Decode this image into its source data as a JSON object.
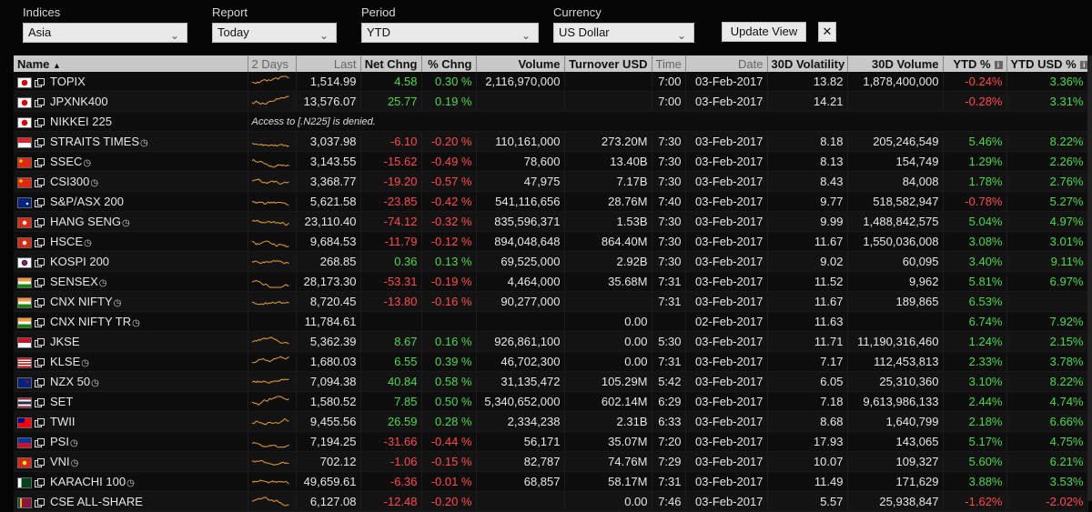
{
  "controls": {
    "indices": {
      "label": "Indices",
      "value": "Asia"
    },
    "report": {
      "label": "Report",
      "value": "Today"
    },
    "period": {
      "label": "Period",
      "value": "YTD"
    },
    "currency": {
      "label": "Currency",
      "value": "US Dollar"
    },
    "update_label": "Update View",
    "close_symbol": "✕"
  },
  "columns": {
    "name": "Name",
    "sort_arrow": "▲",
    "days": "2 Days",
    "last": "Last",
    "net_chng": "Net Chng",
    "pct_chng": "% Chng",
    "volume": "Volume",
    "turnover": "Turnover USD",
    "time": "Time",
    "date": "Date",
    "vol30": "30D Volatility",
    "volume30": "30D Volume",
    "ytd": "YTD %",
    "ytd_usd": "YTD USD %",
    "info_icon": "i"
  },
  "colors": {
    "positive": "#4cd84c",
    "negative": "#ff4b4b",
    "sparkline": "#e8a030",
    "header_bg": "#c8c8c8"
  },
  "rows": [
    {
      "name": "TOPIX",
      "flag": "jp",
      "clock": false,
      "spark": true,
      "last": "1,514.99",
      "net": "4.58",
      "pct": "0.30 %",
      "volume": "2,116,970,000",
      "turnover": "",
      "time": "7:00",
      "date": "03-Feb-2017",
      "vol30": "13.82",
      "volume30": "1,878,400,000",
      "ytd": "-0.24%",
      "ytd_usd": "3.36%"
    },
    {
      "name": "JPXNK400",
      "flag": "jp",
      "clock": false,
      "spark": true,
      "last": "13,576.07",
      "net": "25.77",
      "pct": "0.19 %",
      "volume": "",
      "turnover": "",
      "time": "7:00",
      "date": "03-Feb-2017",
      "vol30": "14.21",
      "volume30": "",
      "ytd": "-0.28%",
      "ytd_usd": "3.31%"
    },
    {
      "name": "NIKKEI 225",
      "flag": "jp",
      "clock": false,
      "spark": false,
      "message": "Access to [.N225] is denied."
    },
    {
      "name": "STRAITS TIMES",
      "flag": "sg",
      "clock": true,
      "spark": true,
      "last": "3,037.98",
      "net": "-6.10",
      "pct": "-0.20 %",
      "volume": "110,161,000",
      "turnover": "273.20M",
      "time": "7:30",
      "date": "03-Feb-2017",
      "vol30": "8.18",
      "volume30": "205,246,549",
      "ytd": "5.46%",
      "ytd_usd": "8.22%"
    },
    {
      "name": "SSEC",
      "flag": "cn",
      "clock": true,
      "spark": true,
      "last": "3,143.55",
      "net": "-15.62",
      "pct": "-0.49 %",
      "volume": "78,600",
      "turnover": "13.40B",
      "time": "7:30",
      "date": "03-Feb-2017",
      "vol30": "8.13",
      "volume30": "154,749",
      "ytd": "1.29%",
      "ytd_usd": "2.26%"
    },
    {
      "name": "CSI300",
      "flag": "cn",
      "clock": true,
      "spark": true,
      "last": "3,368.77",
      "net": "-19.20",
      "pct": "-0.57 %",
      "volume": "47,975",
      "turnover": "7.17B",
      "time": "7:30",
      "date": "03-Feb-2017",
      "vol30": "8.43",
      "volume30": "84,008",
      "ytd": "1.78%",
      "ytd_usd": "2.76%"
    },
    {
      "name": "S&P/ASX 200",
      "flag": "au",
      "clock": false,
      "spark": true,
      "last": "5,621.58",
      "net": "-23.85",
      "pct": "-0.42 %",
      "volume": "541,116,656",
      "turnover": "28.76M",
      "time": "7:40",
      "date": "03-Feb-2017",
      "vol30": "9.77",
      "volume30": "518,582,947",
      "ytd": "-0.78%",
      "ytd_usd": "5.27%"
    },
    {
      "name": "HANG SENG",
      "flag": "hk",
      "clock": true,
      "spark": true,
      "last": "23,110.40",
      "net": "-74.12",
      "pct": "-0.32 %",
      "volume": "835,596,371",
      "turnover": "1.53B",
      "time": "7:30",
      "date": "03-Feb-2017",
      "vol30": "9.99",
      "volume30": "1,488,842,575",
      "ytd": "5.04%",
      "ytd_usd": "4.97%"
    },
    {
      "name": "HSCE",
      "flag": "hk",
      "clock": true,
      "spark": true,
      "last": "9,684.53",
      "net": "-11.79",
      "pct": "-0.12 %",
      "volume": "894,048,648",
      "turnover": "864.40M",
      "time": "7:30",
      "date": "03-Feb-2017",
      "vol30": "11.67",
      "volume30": "1,550,036,008",
      "ytd": "3.08%",
      "ytd_usd": "3.01%"
    },
    {
      "name": "KOSPI 200",
      "flag": "kr",
      "clock": false,
      "spark": true,
      "last": "268.85",
      "net": "0.36",
      "pct": "0.13 %",
      "volume": "69,525,000",
      "turnover": "2.92B",
      "time": "7:30",
      "date": "03-Feb-2017",
      "vol30": "9.02",
      "volume30": "60,095",
      "ytd": "3.40%",
      "ytd_usd": "9.11%"
    },
    {
      "name": "SENSEX",
      "flag": "in",
      "clock": true,
      "spark": true,
      "last": "28,173.30",
      "net": "-53.31",
      "pct": "-0.19 %",
      "volume": "4,464,000",
      "turnover": "35.68M",
      "time": "7:31",
      "date": "03-Feb-2017",
      "vol30": "11.52",
      "volume30": "9,962",
      "ytd": "5.81%",
      "ytd_usd": "6.97%"
    },
    {
      "name": "CNX NIFTY",
      "flag": "in",
      "clock": true,
      "spark": true,
      "last": "8,720.45",
      "net": "-13.80",
      "pct": "-0.16 %",
      "volume": "90,277,000",
      "turnover": "",
      "time": "7:31",
      "date": "03-Feb-2017",
      "vol30": "11.67",
      "volume30": "189,865",
      "ytd": "6.53%",
      "ytd_usd": ""
    },
    {
      "name": "CNX NIFTY TR",
      "flag": "in",
      "clock": true,
      "spark": false,
      "last": "11,784.61",
      "net": "",
      "pct": "",
      "volume": "",
      "turnover": "0.00",
      "time": "",
      "date": "02-Feb-2017",
      "vol30": "11.63",
      "volume30": "",
      "ytd": "6.74%",
      "ytd_usd": "7.92%"
    },
    {
      "name": "JKSE",
      "flag": "id",
      "clock": false,
      "spark": true,
      "last": "5,362.39",
      "net": "8.67",
      "pct": "0.16 %",
      "volume": "926,861,100",
      "turnover": "0.00",
      "time": "5:30",
      "date": "03-Feb-2017",
      "vol30": "11.71",
      "volume30": "11,190,316,460",
      "ytd": "1.24%",
      "ytd_usd": "2.15%"
    },
    {
      "name": "KLSE",
      "flag": "my",
      "clock": true,
      "spark": true,
      "last": "1,680.03",
      "net": "6.55",
      "pct": "0.39 %",
      "volume": "46,702,300",
      "turnover": "0.00",
      "time": "7:31",
      "date": "03-Feb-2017",
      "vol30": "7.17",
      "volume30": "112,453,813",
      "ytd": "2.33%",
      "ytd_usd": "3.78%"
    },
    {
      "name": "NZX 50",
      "flag": "nz",
      "clock": true,
      "spark": true,
      "last": "7,094.38",
      "net": "40.84",
      "pct": "0.58 %",
      "volume": "31,135,472",
      "turnover": "105.29M",
      "time": "5:42",
      "date": "03-Feb-2017",
      "vol30": "6.05",
      "volume30": "25,310,360",
      "ytd": "3.10%",
      "ytd_usd": "8.22%"
    },
    {
      "name": "SET",
      "flag": "th",
      "clock": false,
      "spark": true,
      "last": "1,580.52",
      "net": "7.85",
      "pct": "0.50 %",
      "volume": "5,340,652,000",
      "turnover": "602.14M",
      "time": "6:29",
      "date": "03-Feb-2017",
      "vol30": "7.18",
      "volume30": "9,613,986,133",
      "ytd": "2.44%",
      "ytd_usd": "4.74%"
    },
    {
      "name": "TWII",
      "flag": "tw",
      "clock": false,
      "spark": true,
      "last": "9,455.56",
      "net": "26.59",
      "pct": "0.28 %",
      "volume": "2,334,238",
      "turnover": "2.31B",
      "time": "6:33",
      "date": "03-Feb-2017",
      "vol30": "8.68",
      "volume30": "1,640,799",
      "ytd": "2.18%",
      "ytd_usd": "6.66%"
    },
    {
      "name": "PSI",
      "flag": "ph",
      "clock": true,
      "spark": true,
      "last": "7,194.25",
      "net": "-31.66",
      "pct": "-0.44 %",
      "volume": "56,171",
      "turnover": "35.07M",
      "time": "7:20",
      "date": "03-Feb-2017",
      "vol30": "17.93",
      "volume30": "143,065",
      "ytd": "5.17%",
      "ytd_usd": "4.75%"
    },
    {
      "name": "VNI",
      "flag": "vn",
      "clock": true,
      "spark": true,
      "last": "702.12",
      "net": "-1.06",
      "pct": "-0.15 %",
      "volume": "82,787",
      "turnover": "74.76M",
      "time": "7:29",
      "date": "03-Feb-2017",
      "vol30": "10.07",
      "volume30": "109,327",
      "ytd": "5.60%",
      "ytd_usd": "6.21%"
    },
    {
      "name": "KARACHI 100",
      "flag": "pk",
      "clock": true,
      "spark": true,
      "last": "49,659.61",
      "net": "-6.36",
      "pct": "-0.01 %",
      "volume": "68,857",
      "turnover": "58.17M",
      "time": "7:31",
      "date": "03-Feb-2017",
      "vol30": "11.49",
      "volume30": "171,629",
      "ytd": "3.88%",
      "ytd_usd": "3.53%"
    },
    {
      "name": "CSE ALL-SHARE",
      "flag": "lk",
      "clock": false,
      "spark": true,
      "last": "6,127.08",
      "net": "-12.48",
      "pct": "-0.20 %",
      "volume": "",
      "turnover": "0.00",
      "time": "7:46",
      "date": "03-Feb-2017",
      "vol30": "5.57",
      "volume30": "25,938,847",
      "ytd": "-1.62%",
      "ytd_usd": "-2.02%"
    }
  ]
}
